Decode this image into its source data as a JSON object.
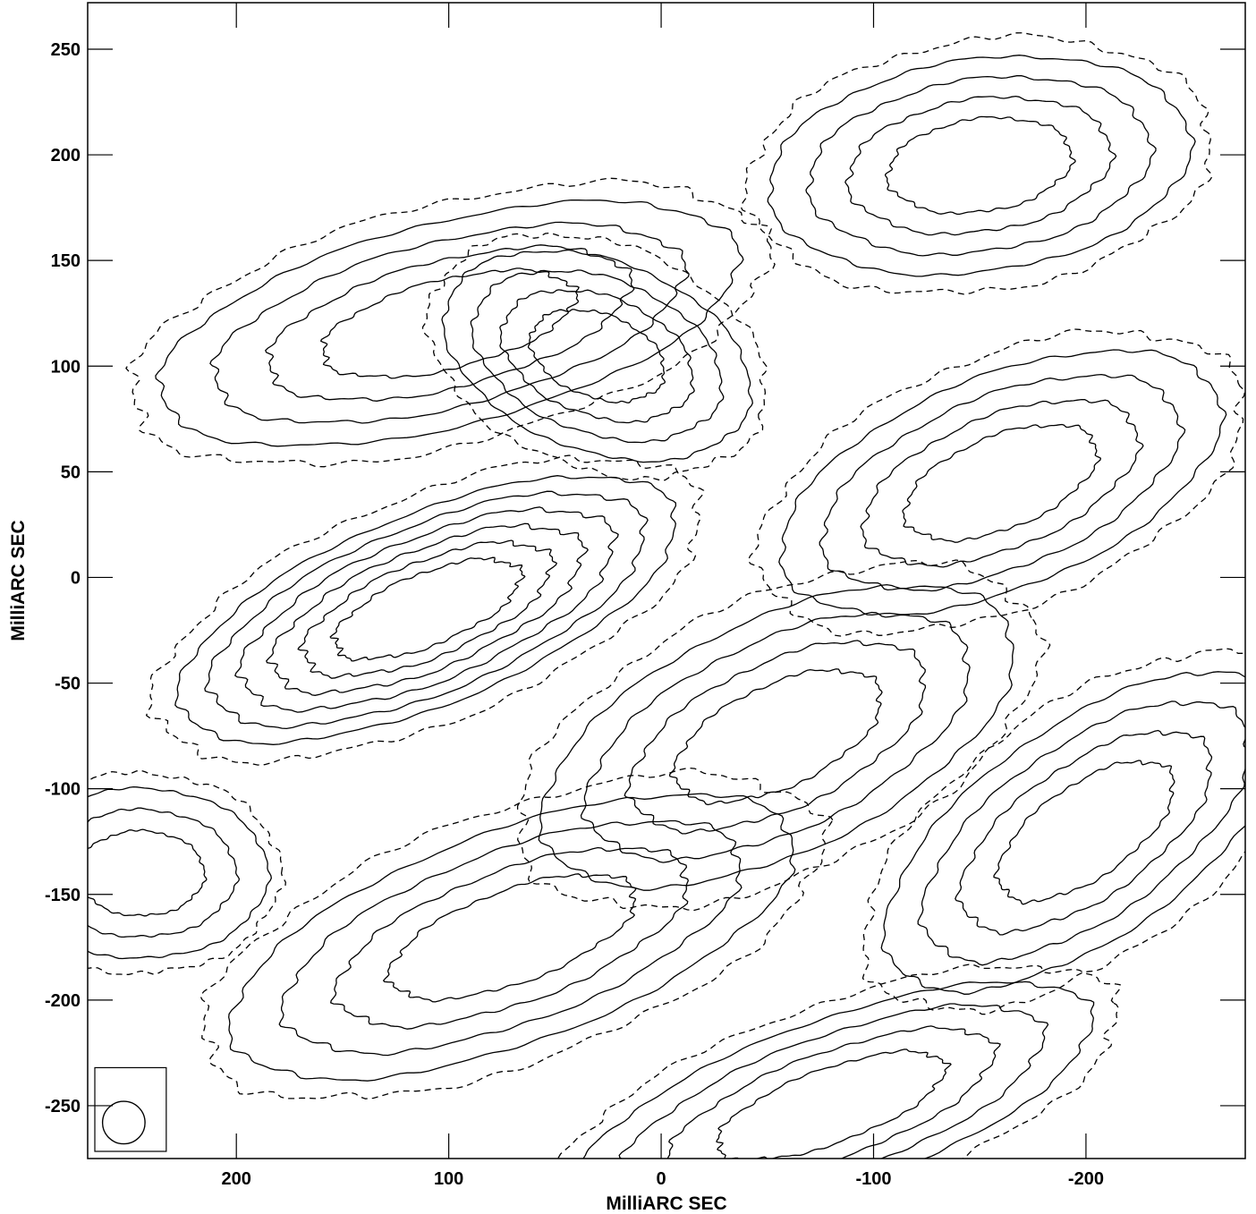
{
  "chart_data": {
    "type": "contour",
    "xlabel": "MilliARC SEC",
    "ylabel": "MilliARC SEC",
    "xlim": [
      270,
      -275
    ],
    "ylim": [
      -275,
      272
    ],
    "x_ticks": [
      200,
      100,
      0,
      -100,
      -200
    ],
    "x_tick_labels": [
      "200",
      "100",
      "0",
      "-100",
      "-200"
    ],
    "y_ticks": [
      250,
      200,
      150,
      100,
      50,
      0,
      -50,
      -100,
      -150,
      -200,
      -250
    ],
    "y_tick_labels": [
      "250",
      "200",
      "150",
      "100",
      "50",
      "0",
      "-50",
      "-100",
      "-150",
      "-200",
      "-250"
    ],
    "contour_levels": 6,
    "negative_contours_dashed": true,
    "beam": {
      "x": 253,
      "y": -258,
      "major": 20,
      "minor": 20
    },
    "sources": [
      {
        "name": "",
        "x": 110,
        "y": -15,
        "a": 125,
        "b": 45,
        "angle": 22,
        "levels": 6
      },
      {
        "name": "",
        "x": 100,
        "y": 120,
        "a": 140,
        "b": 48,
        "angle": 14,
        "levels": 4
      },
      {
        "name": "",
        "x": 30,
        "y": 105,
        "a": 75,
        "b": 45,
        "angle": -20,
        "levels": 4
      },
      {
        "name": "",
        "x": -150,
        "y": 195,
        "a": 100,
        "b": 50,
        "angle": 8,
        "levels": 4
      },
      {
        "name": "",
        "x": -160,
        "y": 45,
        "a": 110,
        "b": 50,
        "angle": 22,
        "levels": 4
      },
      {
        "name": "",
        "x": 70,
        "y": -170,
        "a": 140,
        "b": 50,
        "angle": 20,
        "levels": 4
      },
      {
        "name": "",
        "x": -55,
        "y": -75,
        "a": 120,
        "b": 55,
        "angle": 25,
        "levels": 4
      },
      {
        "name": "",
        "x": -200,
        "y": -120,
        "a": 110,
        "b": 50,
        "angle": 35,
        "levels": 4
      },
      {
        "name": "",
        "x": -80,
        "y": -250,
        "a": 130,
        "b": 40,
        "angle": 20,
        "levels": 4
      },
      {
        "name": "",
        "x": 245,
        "y": -140,
        "a": 60,
        "b": 40,
        "angle": 0,
        "levels": 3
      }
    ]
  }
}
